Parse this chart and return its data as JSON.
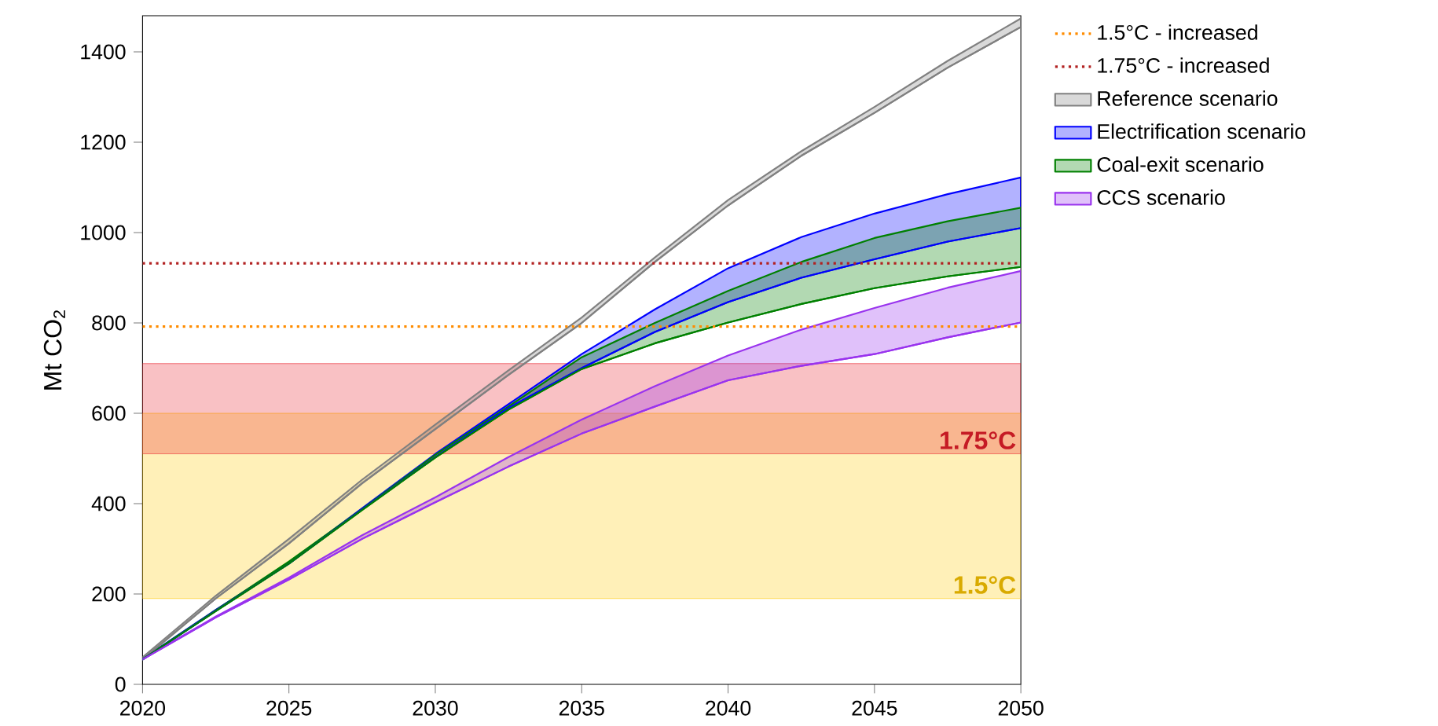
{
  "chart_data": {
    "type": "line",
    "ylabel": "Mt CO$_{2}$",
    "xlim": [
      2020,
      2050
    ],
    "ylim": [
      0,
      1480
    ],
    "xticks": [
      2020,
      2025,
      2030,
      2035,
      2040,
      2045,
      2050
    ],
    "yticks": [
      0,
      200,
      400,
      600,
      800,
      1000,
      1200,
      1400
    ],
    "grid": false,
    "legend": "right",
    "bands": [
      {
        "axis": "y",
        "from": 190,
        "to": 600,
        "label": "1.5°C",
        "color": "#ffc800"
      },
      {
        "axis": "y",
        "from": 510,
        "to": 710,
        "label": "1.75°C",
        "color": "#e8202a"
      }
    ],
    "ref_lines": [
      {
        "axis": "y",
        "value": 792,
        "label": "1.5°C - increased",
        "color": "#ff8c00",
        "line_style": "dotted"
      },
      {
        "axis": "y",
        "value": 932,
        "label": "1.75°C - increased",
        "color": "#b22222",
        "line_style": "dotted"
      }
    ],
    "series": [
      {
        "name": "Reference scenario",
        "color": "#808080",
        "x": [
          2020,
          2022.5,
          2025,
          2027.5,
          2030,
          2032.5,
          2035,
          2037.5,
          2040,
          2042.5,
          2045,
          2047.5,
          2050
        ],
        "values": [
          55,
          190,
          312,
          445,
          565,
          685,
          800,
          935,
          1060,
          1170,
          1265,
          1365,
          1455
        ],
        "lower": [
          55,
          190,
          312,
          445,
          565,
          685,
          800,
          935,
          1060,
          1170,
          1265,
          1365,
          1455
        ],
        "upper": [
          60,
          196,
          322,
          453,
          575,
          695,
          812,
          945,
          1072,
          1180,
          1278,
          1380,
          1474
        ]
      },
      {
        "name": "Electrification scenario",
        "color": "#0000ff",
        "x": [
          2020,
          2022.5,
          2025,
          2027.5,
          2030,
          2032.5,
          2035,
          2037.5,
          2040,
          2042.5,
          2045,
          2047.5,
          2050
        ],
        "values": [
          55,
          163,
          267,
          387,
          503,
          612,
          700,
          780,
          846,
          900,
          941,
          980,
          1010
        ],
        "lower": [
          55,
          163,
          267,
          387,
          503,
          612,
          700,
          780,
          846,
          900,
          941,
          980,
          1010
        ],
        "upper": [
          56,
          165,
          269,
          390,
          510,
          620,
          731,
          830,
          921,
          990,
          1042,
          1085,
          1122
        ]
      },
      {
        "name": "Coal-exit scenario",
        "color": "#008000",
        "x": [
          2020,
          2022.5,
          2025,
          2027.5,
          2030,
          2032.5,
          2035,
          2037.5,
          2040,
          2042.5,
          2045,
          2047.5,
          2050
        ],
        "values": [
          55,
          162,
          267,
          386,
          502,
          608,
          698,
          755,
          801,
          842,
          877,
          903,
          924
        ],
        "lower": [
          55,
          162,
          267,
          386,
          502,
          608,
          698,
          755,
          801,
          842,
          877,
          903,
          924
        ],
        "upper": [
          56,
          164,
          272,
          388,
          508,
          615,
          724,
          800,
          871,
          935,
          988,
          1025,
          1055
        ]
      },
      {
        "name": "CCS scenario",
        "color": "#9933ee",
        "x": [
          2020,
          2022.5,
          2025,
          2027.5,
          2030,
          2032.5,
          2035,
          2037.5,
          2040,
          2042.5,
          2045,
          2047.5,
          2050
        ],
        "values": [
          55,
          148,
          232,
          322,
          403,
          482,
          555,
          615,
          673,
          705,
          731,
          768,
          801
        ],
        "lower": [
          55,
          148,
          232,
          322,
          403,
          482,
          555,
          615,
          673,
          705,
          731,
          768,
          801
        ],
        "upper": [
          56,
          150,
          236,
          330,
          414,
          503,
          586,
          660,
          728,
          785,
          833,
          878,
          915
        ]
      }
    ]
  }
}
